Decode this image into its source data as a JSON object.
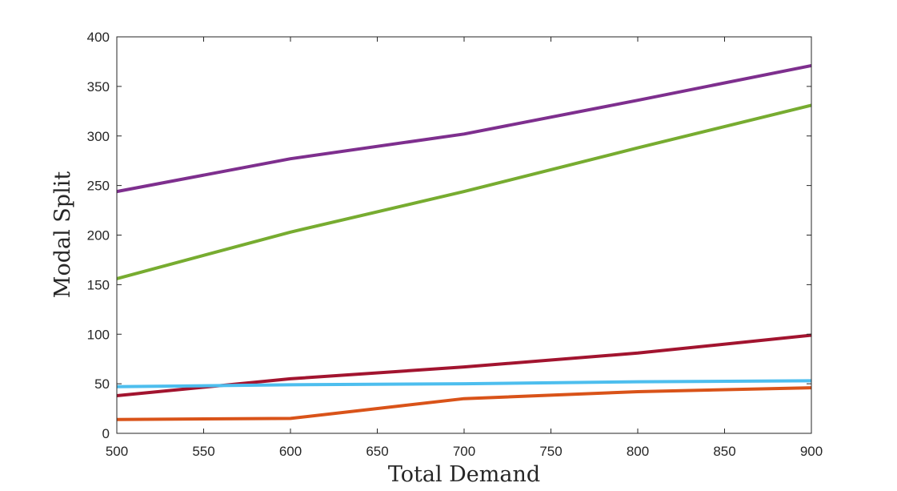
{
  "chart_data": {
    "type": "line",
    "xlabel": "Total Demand",
    "ylabel": "Modal Split",
    "xlim": [
      500,
      900
    ],
    "ylim": [
      0,
      400
    ],
    "x_ticks": [
      500,
      550,
      600,
      650,
      700,
      750,
      800,
      850,
      900
    ],
    "y_ticks": [
      0,
      50,
      100,
      150,
      200,
      250,
      300,
      350,
      400
    ],
    "x": [
      500,
      600,
      700,
      800,
      900
    ],
    "grid": false,
    "legend": "none",
    "series": [
      {
        "color": "#7E2F8E",
        "values": [
          244,
          277,
          302,
          336,
          371
        ]
      },
      {
        "color": "#77AC30",
        "values": [
          156,
          203,
          244,
          288,
          331
        ]
      },
      {
        "color": "#A2142F",
        "values": [
          38,
          55,
          67,
          81,
          99
        ]
      },
      {
        "color": "#4DBEEE",
        "values": [
          47,
          49,
          50,
          52,
          53
        ]
      },
      {
        "color": "#D95319",
        "values": [
          14,
          15,
          35,
          42,
          46
        ]
      }
    ]
  }
}
